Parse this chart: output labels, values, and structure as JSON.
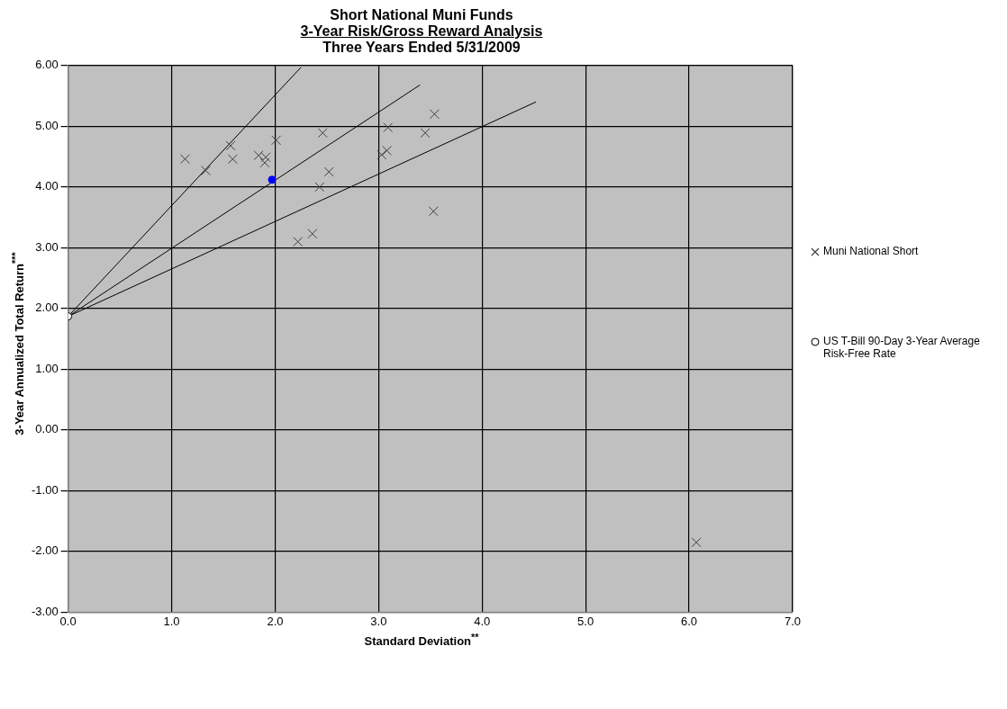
{
  "chart_data": {
    "type": "scatter",
    "title": "Short National Muni Funds",
    "subtitle": "3-Year Risk/Gross Reward Analysis\nThree Years Ended 5/31/2009",
    "xlabel": "Standard Deviation$^{**}$",
    "ylabel": "3-Year Annualized Total Return$^{***}$",
    "xlim": [
      0,
      7
    ],
    "ylim": [
      -3,
      6
    ],
    "xticks": [
      {
        "value": 0,
        "label": "0.0"
      },
      {
        "value": 1,
        "label": "1.0"
      },
      {
        "value": 2,
        "label": "2.0"
      },
      {
        "value": 3,
        "label": "3.0"
      },
      {
        "value": 4,
        "label": "4.0"
      },
      {
        "value": 5,
        "label": "5.0"
      },
      {
        "value": 6,
        "label": "6.0"
      },
      {
        "value": 7,
        "label": "7.0"
      }
    ],
    "yticks": [
      {
        "value": -3,
        "label": "-3.00"
      },
      {
        "value": -2,
        "label": "-2.00"
      },
      {
        "value": -1,
        "label": "-1.00"
      },
      {
        "value": 0,
        "label": "0.00"
      },
      {
        "value": 1,
        "label": "1.00"
      },
      {
        "value": 2,
        "label": "2.00"
      },
      {
        "value": 3,
        "label": "3.00"
      },
      {
        "value": 4,
        "label": "4.00"
      },
      {
        "value": 5,
        "label": "5.00"
      },
      {
        "value": 6,
        "label": "6.00"
      }
    ],
    "grid": true,
    "legend": "right",
    "series": [
      {
        "type": "line",
        "marker": "none",
        "color": "#000000",
        "x": [
          0,
          2.25
        ],
        "values": [
          1.87,
          5.97
        ]
      },
      {
        "type": "line",
        "marker": "none",
        "color": "#000000",
        "x": [
          0,
          3.4
        ],
        "values": [
          1.87,
          5.68
        ]
      },
      {
        "type": "line",
        "marker": "none",
        "color": "#000000",
        "x": [
          0,
          4.52
        ],
        "values": [
          1.87,
          5.4
        ]
      },
      {
        "name": "Muni National Short",
        "type": "scatter",
        "marker": "cross",
        "color": "#404040",
        "x": [
          1.13,
          1.33,
          1.57,
          1.59,
          1.84,
          1.91,
          1.9,
          2.01,
          2.46,
          2.52,
          2.43,
          2.36,
          2.22,
          3.09,
          3.08,
          3.03,
          3.45,
          3.54,
          3.53,
          6.07
        ],
        "values": [
          4.46,
          4.27,
          4.68,
          4.46,
          4.52,
          4.49,
          4.4,
          4.77,
          4.89,
          4.25,
          4.0,
          3.23,
          3.1,
          4.98,
          4.6,
          4.53,
          4.89,
          5.2,
          3.6,
          -1.85
        ]
      },
      {
        "type": "scatter",
        "marker": "circle",
        "color": "#0000ff",
        "x": [
          1.97
        ],
        "values": [
          4.12
        ]
      },
      {
        "name": "US T-Bill 90-Day 3-Year Average Risk-Free Rate",
        "type": "scatter",
        "marker": "circle",
        "color": "#ffffff",
        "x": [
          0
        ],
        "values": [
          1.87
        ]
      }
    ]
  }
}
